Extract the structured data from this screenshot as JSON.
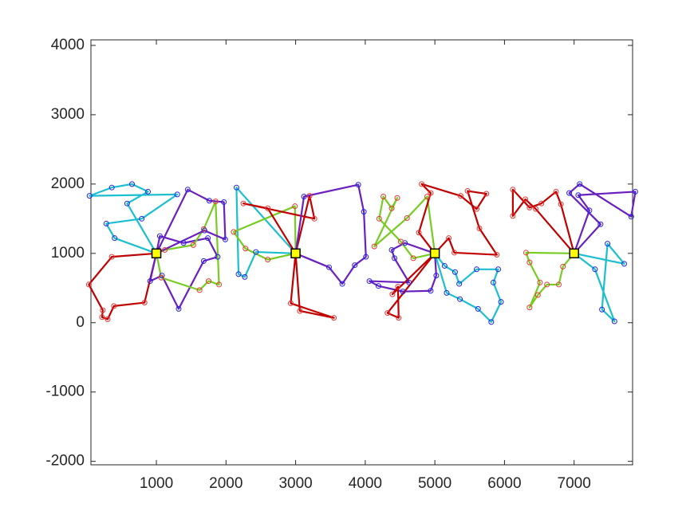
{
  "chart_data": {
    "type": "line",
    "xlim": [
      60,
      7840
    ],
    "ylim": [
      -2050,
      4080
    ],
    "xticks": [
      1000,
      2000,
      3000,
      4000,
      5000,
      6000,
      7000
    ],
    "yticks": [
      -2000,
      -1000,
      0,
      1000,
      2000,
      3000,
      4000
    ],
    "series": [
      {
        "color": "#1cbfcf",
        "marker_color": "#2222ee",
        "x": [
          1000,
          580,
          880,
          650,
          360,
          40,
          1300,
          790,
          280,
          400,
          1000
        ],
        "values": [
          1000,
          1720,
          1890,
          2000,
          1950,
          1830,
          1850,
          1500,
          1430,
          1220,
          1000
        ]
      },
      {
        "color": "#c00000",
        "marker_color": "#ee3333",
        "x": [
          1000,
          830,
          390,
          300,
          220,
          230,
          30,
          360,
          1000
        ],
        "values": [
          1000,
          290,
          240,
          50,
          80,
          180,
          550,
          950,
          1000
        ]
      },
      {
        "color": "#6a1fbf",
        "marker_color": "#2222ee",
        "x": [
          1000,
          1050,
          1390,
          1740,
          1880,
          1680,
          1320,
          1080,
          910,
          1000
        ],
        "values": [
          1000,
          1250,
          1150,
          1220,
          950,
          890,
          200,
          680,
          600,
          1000
        ]
      },
      {
        "color": "#77cc22",
        "marker_color": "#ee3333",
        "x": [
          1000,
          1070,
          1620,
          1750,
          1900,
          1850,
          1680,
          1530,
          1120,
          1000
        ],
        "values": [
          1000,
          650,
          470,
          600,
          550,
          1750,
          1350,
          1120,
          1050,
          1000
        ]
      },
      {
        "color": "#6a1fbf",
        "marker_color": "#2222ee",
        "x": [
          1000,
          1450,
          1760,
          1970,
          1990,
          1690,
          1000
        ],
        "values": [
          1000,
          1920,
          1760,
          1740,
          1200,
          1330,
          1000
        ]
      },
      {
        "color": "#1cbfcf",
        "marker_color": "#2222ee",
        "x": [
          3000,
          2150,
          2180,
          2270,
          2430,
          3000
        ],
        "values": [
          1000,
          1950,
          700,
          660,
          1020,
          1000
        ]
      },
      {
        "color": "#77cc22",
        "marker_color": "#ee3333",
        "x": [
          3000,
          2600,
          2280,
          2110,
          2990,
          3000
        ],
        "values": [
          1000,
          910,
          1070,
          1310,
          1680,
          1000
        ]
      },
      {
        "color": "#c00000",
        "marker_color": "#ee3333",
        "x": [
          3000,
          2930,
          3550,
          3060,
          3000
        ],
        "values": [
          1000,
          280,
          70,
          170,
          1000
        ]
      },
      {
        "color": "#c00000",
        "marker_color": "#ee3333",
        "x": [
          3000,
          2600,
          2250,
          3270,
          3200,
          3000
        ],
        "values": [
          1000,
          1650,
          1720,
          1500,
          1830,
          1000
        ]
      },
      {
        "color": "#6a1fbf",
        "marker_color": "#2222ee",
        "x": [
          3000,
          3480,
          3670,
          3850,
          4010,
          3980,
          3900,
          3120,
          3000
        ],
        "values": [
          1000,
          800,
          560,
          830,
          950,
          1600,
          1990,
          1820,
          1000
        ]
      },
      {
        "color": "#6a1fbf",
        "marker_color": "#2222ee",
        "x": [
          5000,
          4570,
          4380,
          4420,
          4630,
          4060,
          4190,
          4540,
          4940,
          5020,
          5000
        ],
        "values": [
          1000,
          1150,
          1050,
          930,
          580,
          600,
          530,
          450,
          460,
          680,
          1000
        ]
      },
      {
        "color": "#77cc22",
        "marker_color": "#ee3333",
        "x": [
          5000,
          4690,
          4510,
          4200,
          4260,
          4380,
          4460,
          4130,
          4600,
          4890,
          5000
        ],
        "values": [
          1000,
          930,
          1170,
          1500,
          1820,
          1650,
          1800,
          1100,
          1510,
          1820,
          1000
        ]
      },
      {
        "color": "#c00000",
        "marker_color": "#ee3333",
        "x": [
          5000,
          4770,
          4940,
          4810,
          5370,
          5600,
          5740,
          5470,
          5640,
          5890,
          5280,
          5200,
          5000
        ],
        "values": [
          1000,
          1300,
          1870,
          2000,
          1830,
          1640,
          1860,
          1900,
          1360,
          980,
          1010,
          1220,
          1000
        ]
      },
      {
        "color": "#1cbfcf",
        "marker_color": "#2222ee",
        "x": [
          5000,
          5140,
          5290,
          5350,
          5600,
          5910,
          5840,
          5950,
          5810,
          5620,
          5360,
          5170,
          5000
        ],
        "values": [
          1000,
          820,
          730,
          560,
          770,
          770,
          580,
          300,
          10,
          200,
          340,
          430,
          1000
        ]
      },
      {
        "color": "#c00000",
        "marker_color": "#ee3333",
        "x": [
          5000,
          4390,
          4470,
          4480,
          4320,
          5000
        ],
        "values": [
          1000,
          410,
          520,
          70,
          140,
          1000
        ]
      },
      {
        "color": "#c00000",
        "marker_color": "#ee3333",
        "x": [
          7000,
          6450,
          6300,
          6120,
          6120,
          6360,
          6530,
          6740,
          6810,
          7000
        ],
        "values": [
          1000,
          1640,
          1780,
          1540,
          1920,
          1660,
          1720,
          1890,
          1710,
          1000
        ]
      },
      {
        "color": "#6a1fbf",
        "marker_color": "#2222ee",
        "x": [
          7000,
          7220,
          7060,
          7880,
          7820,
          7080,
          6930,
          7380,
          7000
        ],
        "values": [
          1000,
          1620,
          1840,
          1890,
          1530,
          2000,
          1870,
          1420,
          1000
        ]
      },
      {
        "color": "#77cc22",
        "marker_color": "#ee3333",
        "x": [
          7000,
          6310,
          6360,
          6510,
          6360,
          6480,
          6610,
          6780,
          6840,
          7000
        ],
        "values": [
          1000,
          1010,
          870,
          580,
          220,
          400,
          550,
          550,
          810,
          1000
        ]
      },
      {
        "color": "#1cbfcf",
        "marker_color": "#2222ee",
        "x": [
          7000,
          7300,
          7580,
          7400,
          7480,
          7720,
          7000
        ],
        "values": [
          1000,
          770,
          20,
          190,
          1140,
          850,
          1000
        ]
      }
    ],
    "depots": {
      "color": "#ffff00",
      "x": [
        1000,
        3000,
        5000,
        7000
      ],
      "values": [
        1000,
        1000,
        1000,
        1000
      ]
    }
  }
}
